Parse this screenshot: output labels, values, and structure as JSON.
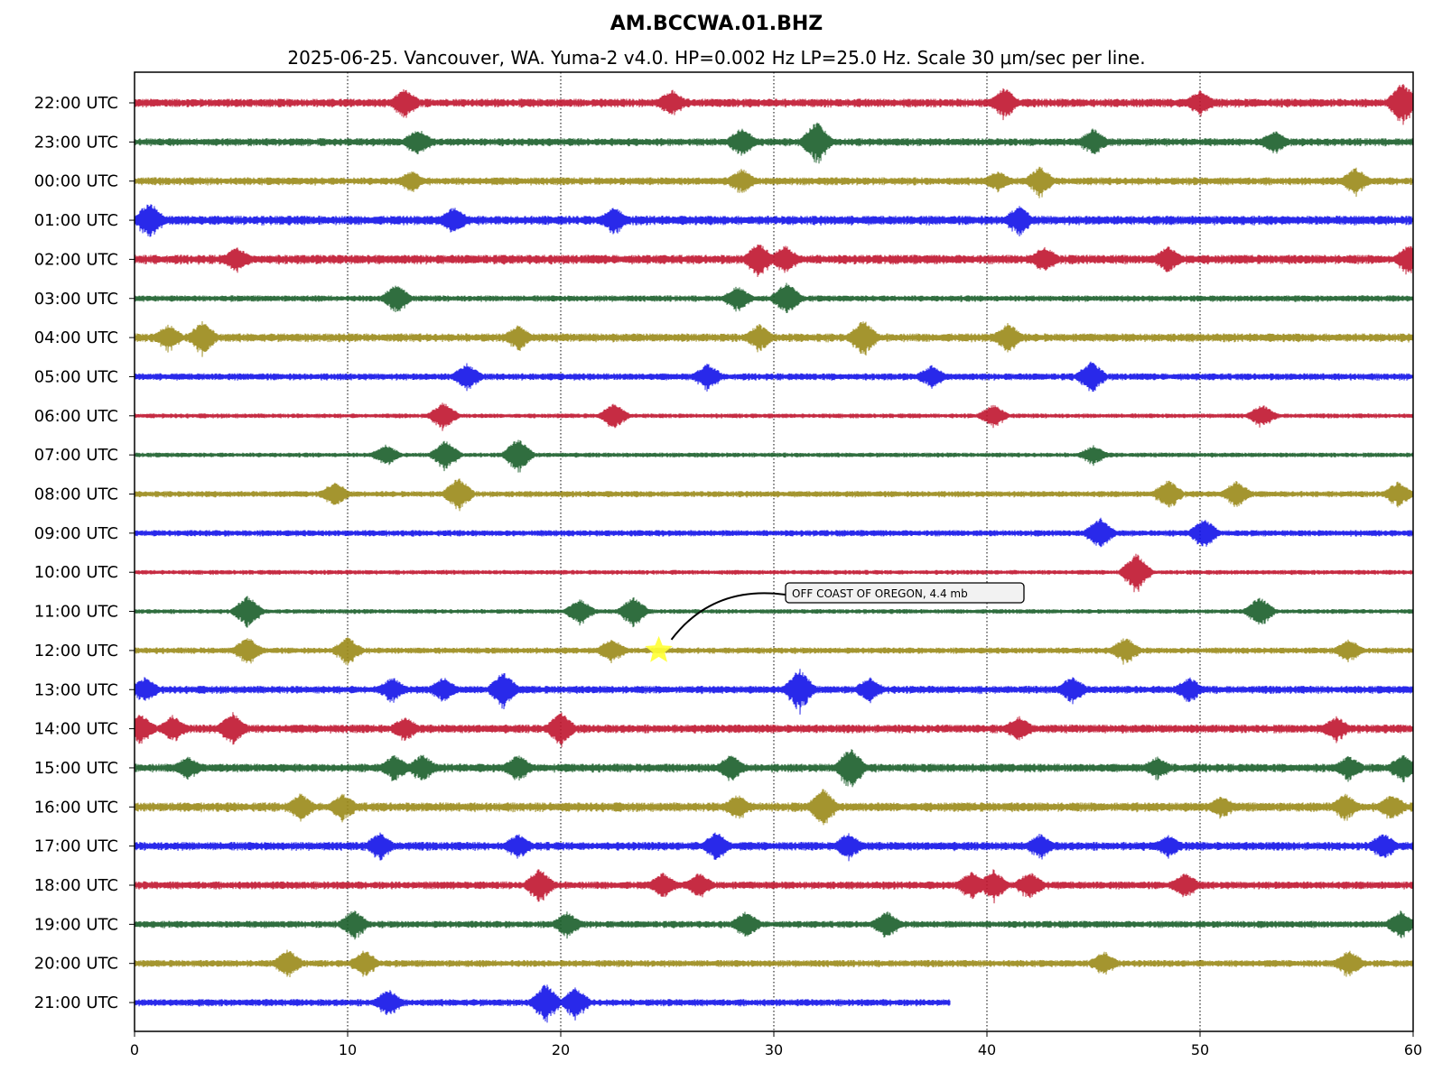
{
  "chart_data": {
    "type": "line",
    "title": "AM.BCCWA.01.BHZ",
    "subtitle": "2025-06-25. Vancouver, WA. Yuma-2 v4.0. HP=0.002 Hz LP=25.0 Hz. Scale 30 μm/sec per line.",
    "xlim": [
      0,
      60
    ],
    "x_ticks": [
      "0",
      "10",
      "20",
      "30",
      "40",
      "50",
      "60"
    ],
    "grid": "vertical dotted lines at 10, 20, 30, 40, 50",
    "rows": [
      {
        "label": "22:00 UTC",
        "color": "#c0152f",
        "end": 60,
        "amp": 0.55,
        "events": [
          [
            12.7,
            1.4
          ],
          [
            25.2,
            1.3
          ],
          [
            40.8,
            1.5
          ],
          [
            50,
            1.2
          ],
          [
            59.5,
            2.0
          ]
        ]
      },
      {
        "label": "23:00 UTC",
        "color": "#1a5e2a",
        "end": 60,
        "amp": 0.5,
        "events": [
          [
            13.3,
            1.3
          ],
          [
            28.5,
            1.4
          ],
          [
            32,
            2.0
          ],
          [
            45,
            1.3
          ],
          [
            53.5,
            1.1
          ]
        ]
      },
      {
        "label": "00:00 UTC",
        "color": "#9a8a18",
        "end": 60,
        "amp": 0.5,
        "events": [
          [
            13,
            1.0
          ],
          [
            28.5,
            1.2
          ],
          [
            40.5,
            1.0
          ],
          [
            42.5,
            1.4
          ],
          [
            57.3,
            1.3
          ]
        ]
      },
      {
        "label": "01:00 UTC",
        "color": "#1212e8",
        "end": 60,
        "amp": 0.6,
        "events": [
          [
            0.7,
            1.8
          ],
          [
            15,
            1.3
          ],
          [
            22.5,
            1.3
          ],
          [
            41.5,
            1.4
          ]
        ]
      },
      {
        "label": "02:00 UTC",
        "color": "#c0152f",
        "end": 60,
        "amp": 0.6,
        "events": [
          [
            4.8,
            1.2
          ],
          [
            29.3,
            1.6
          ],
          [
            30.5,
            1.4
          ],
          [
            42.7,
            1.3
          ],
          [
            48.5,
            1.3
          ],
          [
            59.8,
            1.4
          ]
        ]
      },
      {
        "label": "03:00 UTC",
        "color": "#1a5e2a",
        "end": 60,
        "amp": 0.4,
        "events": [
          [
            12.3,
            1.4
          ],
          [
            28.3,
            1.2
          ],
          [
            30.6,
            1.6
          ]
        ]
      },
      {
        "label": "04:00 UTC",
        "color": "#9a8a18",
        "end": 60,
        "amp": 0.55,
        "events": [
          [
            1.6,
            1.3
          ],
          [
            3.2,
            1.6
          ],
          [
            18,
            1.2
          ],
          [
            29.3,
            1.3
          ],
          [
            34.2,
            1.7
          ],
          [
            41,
            1.4
          ]
        ]
      },
      {
        "label": "05:00 UTC",
        "color": "#1212e8",
        "end": 60,
        "amp": 0.45,
        "events": [
          [
            15.6,
            1.3
          ],
          [
            26.9,
            1.3
          ],
          [
            37.4,
            1.1
          ],
          [
            44.9,
            1.5
          ]
        ]
      },
      {
        "label": "06:00 UTC",
        "color": "#c0152f",
        "end": 60,
        "amp": 0.3,
        "events": [
          [
            14.5,
            1.3
          ],
          [
            22.5,
            1.2
          ],
          [
            40.3,
            1.1
          ],
          [
            52.9,
            1.1
          ]
        ]
      },
      {
        "label": "07:00 UTC",
        "color": "#1a5e2a",
        "end": 60,
        "amp": 0.3,
        "events": [
          [
            11.8,
            1.0
          ],
          [
            14.6,
            1.4
          ],
          [
            18,
            1.6
          ],
          [
            45,
            0.9
          ]
        ]
      },
      {
        "label": "08:00 UTC",
        "color": "#9a8a18",
        "end": 60,
        "amp": 0.4,
        "events": [
          [
            9.4,
            1.2
          ],
          [
            15.2,
            1.6
          ],
          [
            48.5,
            1.4
          ],
          [
            51.7,
            1.3
          ],
          [
            59.3,
            1.2
          ]
        ]
      },
      {
        "label": "09:00 UTC",
        "color": "#1212e8",
        "end": 60,
        "amp": 0.4,
        "events": [
          [
            45.3,
            1.5
          ],
          [
            50.2,
            1.4
          ]
        ]
      },
      {
        "label": "10:00 UTC",
        "color": "#c0152f",
        "end": 60,
        "amp": 0.3,
        "events": [
          [
            47,
            1.8
          ]
        ]
      },
      {
        "label": "11:00 UTC",
        "color": "#1a5e2a",
        "end": 60,
        "amp": 0.3,
        "events": [
          [
            5.3,
            1.5
          ],
          [
            20.9,
            1.2
          ],
          [
            23.4,
            1.4
          ],
          [
            52.8,
            1.4
          ]
        ]
      },
      {
        "label": "12:00 UTC",
        "color": "#9a8a18",
        "end": 60,
        "amp": 0.4,
        "events": [
          [
            5.3,
            1.3
          ],
          [
            10,
            1.3
          ],
          [
            22.4,
            1.2
          ],
          [
            46.5,
            1.3
          ],
          [
            57,
            1.1
          ]
        ]
      },
      {
        "label": "13:00 UTC",
        "color": "#1212e8",
        "end": 60,
        "amp": 0.5,
        "events": [
          [
            0.5,
            1.2
          ],
          [
            12.1,
            1.2
          ],
          [
            14.5,
            1.2
          ],
          [
            17.3,
            1.7
          ],
          [
            31.2,
            2.0
          ],
          [
            34.5,
            1.2
          ],
          [
            44,
            1.3
          ],
          [
            49.5,
            1.2
          ]
        ]
      },
      {
        "label": "14:00 UTC",
        "color": "#c0152f",
        "end": 60,
        "amp": 0.55,
        "events": [
          [
            0.3,
            1.5
          ],
          [
            1.8,
            1.3
          ],
          [
            4.6,
            1.6
          ],
          [
            12.7,
            1.2
          ],
          [
            20,
            1.6
          ],
          [
            41.5,
            1.2
          ],
          [
            56.4,
            1.2
          ]
        ]
      },
      {
        "label": "15:00 UTC",
        "color": "#1a5e2a",
        "end": 60,
        "amp": 0.55,
        "events": [
          [
            2.5,
            1.1
          ],
          [
            12.2,
            1.3
          ],
          [
            13.5,
            1.3
          ],
          [
            18,
            1.3
          ],
          [
            28,
            1.3
          ],
          [
            33.6,
            2.0
          ],
          [
            48,
            1.1
          ],
          [
            57,
            1.2
          ],
          [
            59.5,
            1.3
          ]
        ]
      },
      {
        "label": "16:00 UTC",
        "color": "#9a8a18",
        "end": 60,
        "amp": 0.6,
        "events": [
          [
            7.8,
            1.3
          ],
          [
            9.8,
            1.3
          ],
          [
            28.3,
            1.2
          ],
          [
            32.3,
            1.8
          ],
          [
            51,
            1.1
          ],
          [
            56.8,
            1.3
          ],
          [
            59,
            1.3
          ]
        ]
      },
      {
        "label": "17:00 UTC",
        "color": "#1212e8",
        "end": 60,
        "amp": 0.55,
        "events": [
          [
            11.5,
            1.3
          ],
          [
            18,
            1.2
          ],
          [
            27.3,
            1.4
          ],
          [
            33.5,
            1.3
          ],
          [
            42.5,
            1.2
          ],
          [
            48.5,
            1.1
          ],
          [
            58.6,
            1.3
          ]
        ]
      },
      {
        "label": "18:00 UTC",
        "color": "#c0152f",
        "end": 60,
        "amp": 0.5,
        "events": [
          [
            19,
            1.6
          ],
          [
            24.8,
            1.2
          ],
          [
            26.5,
            1.2
          ],
          [
            39.3,
            1.4
          ],
          [
            40.3,
            1.5
          ],
          [
            42,
            1.3
          ],
          [
            49.3,
            1.3
          ]
        ]
      },
      {
        "label": "19:00 UTC",
        "color": "#1a5e2a",
        "end": 60,
        "amp": 0.45,
        "events": [
          [
            10.3,
            1.4
          ],
          [
            20.3,
            1.2
          ],
          [
            28.7,
            1.3
          ],
          [
            35.3,
            1.3
          ],
          [
            59.4,
            1.3
          ]
        ]
      },
      {
        "label": "20:00 UTC",
        "color": "#9a8a18",
        "end": 60,
        "amp": 0.45,
        "events": [
          [
            7.2,
            1.4
          ],
          [
            10.8,
            1.3
          ],
          [
            45.5,
            1.2
          ],
          [
            57,
            1.3
          ]
        ]
      },
      {
        "label": "21:00 UTC",
        "color": "#1212e8",
        "end": 38.3,
        "amp": 0.45,
        "events": [
          [
            11.9,
            1.3
          ],
          [
            19.3,
            1.8
          ],
          [
            20.7,
            1.5
          ]
        ]
      }
    ],
    "annotations": [
      {
        "text": "OFF COAST OF OREGON, 4.4 mb",
        "row": "12:00 UTC",
        "x": 24.6,
        "marker": "star",
        "marker_color": "#ffff33"
      }
    ]
  }
}
